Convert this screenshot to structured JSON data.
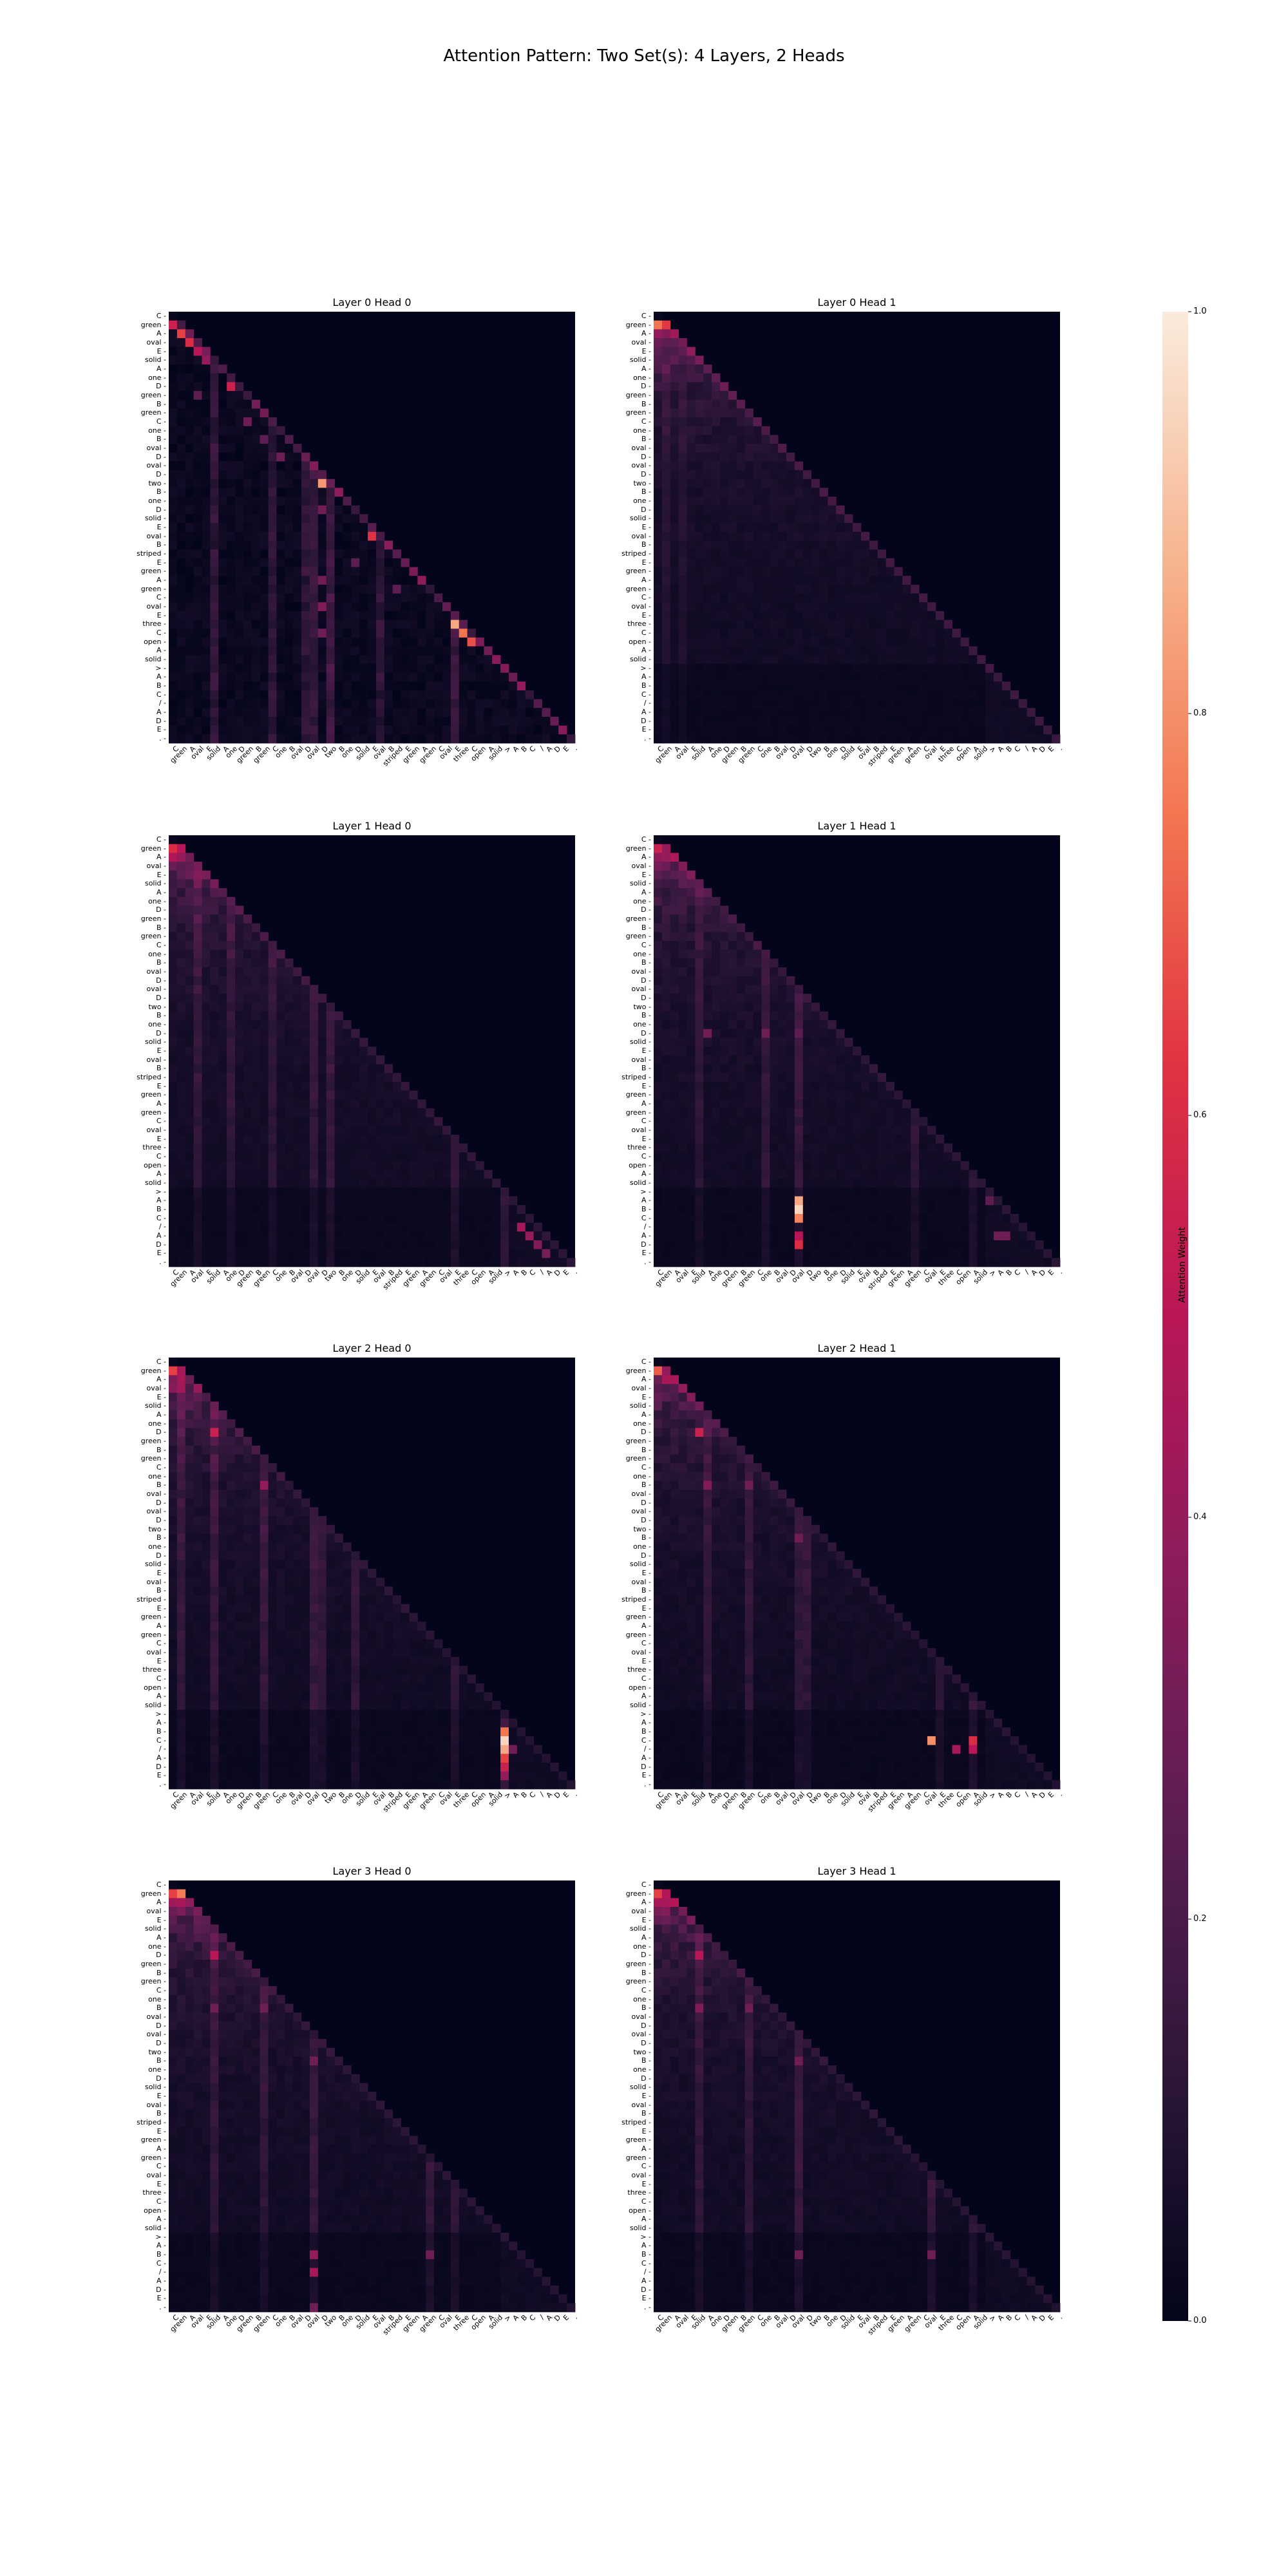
{
  "title": "Attention Pattern: Two Set(s): 4 Layers, 2 Heads",
  "chart_data": {
    "type": "heatmap",
    "tokens": [
      "C",
      "green",
      "A",
      "oval",
      "E",
      "solid",
      "A",
      "one",
      "D",
      "green",
      "B",
      "green",
      "C",
      "one",
      "B",
      "oval",
      "D",
      "oval",
      "D",
      "two",
      "B",
      "one",
      "D",
      "solid",
      "E",
      "oval",
      "B",
      "striped",
      "E",
      "green",
      "A",
      "green",
      "C",
      "oval",
      "E",
      "three",
      "C",
      "open",
      "A",
      "solid",
      ">",
      "A",
      "B",
      "C",
      "/",
      "A",
      "D",
      "E",
      "."
    ],
    "colorbar": {
      "label": "Attention Weight",
      "ticks": [
        0.0,
        0.2,
        0.4,
        0.6,
        0.8,
        1.0
      ],
      "tick_labels": [
        "0.0",
        "0.2",
        "0.4",
        "0.6",
        "0.8",
        "1.0"
      ],
      "range": [
        0,
        1
      ]
    },
    "colormap": [
      "#03051a",
      "#2e1739",
      "#5c1e51",
      "#8c1c5b",
      "#b91657",
      "#e13342",
      "#f37651",
      "#f6b48f",
      "#faebdd"
    ],
    "mask": "causal lower-triangular (upper triangle = 0)",
    "panels": [
      {
        "title": "Layer 0 Head 0",
        "pattern": "sparse",
        "diag": 0.35,
        "base": 0.04,
        "peaks": [
          [
            1,
            0,
            0.55
          ],
          [
            2,
            1,
            0.65
          ],
          [
            3,
            2,
            0.6
          ],
          [
            4,
            3,
            0.5
          ],
          [
            5,
            4,
            0.4
          ],
          [
            8,
            7,
            0.55
          ],
          [
            19,
            18,
            0.82
          ],
          [
            25,
            24,
            0.62
          ],
          [
            35,
            34,
            0.85
          ],
          [
            36,
            35,
            0.75
          ],
          [
            37,
            36,
            0.68
          ],
          [
            16,
            13,
            0.3
          ],
          [
            12,
            9,
            0.3
          ],
          [
            22,
            18,
            0.3
          ],
          [
            30,
            18,
            0.3
          ],
          [
            33,
            18,
            0.35
          ],
          [
            36,
            18,
            0.3
          ],
          [
            9,
            3,
            0.25
          ],
          [
            14,
            11,
            0.25
          ],
          [
            28,
            22,
            0.25
          ],
          [
            31,
            27,
            0.25
          ]
        ],
        "cols": [
          [
            5,
            0.15
          ],
          [
            12,
            0.12
          ],
          [
            16,
            0.14
          ],
          [
            17,
            0.16
          ],
          [
            19,
            0.18
          ],
          [
            25,
            0.12
          ],
          [
            34,
            0.17
          ]
        ]
      },
      {
        "title": "Layer 0 Head 1",
        "pattern": "diffuse",
        "diag": 0.12,
        "base": 0.06,
        "peaks": [
          [
            1,
            0,
            0.75
          ],
          [
            2,
            1,
            0.35
          ],
          [
            3,
            1,
            0.25
          ]
        ],
        "cols": [
          [
            1,
            0.06
          ],
          [
            3,
            0.05
          ]
        ]
      },
      {
        "title": "Layer 1 Head 0",
        "pattern": "diffuse",
        "diag": 0.08,
        "base": 0.07,
        "peaks": [
          [
            1,
            0,
            0.6
          ],
          [
            2,
            1,
            0.4
          ],
          [
            44,
            42,
            0.45
          ],
          [
            45,
            43,
            0.4
          ],
          [
            46,
            44,
            0.35
          ],
          [
            47,
            45,
            0.32
          ]
        ],
        "cols": [
          [
            3,
            0.1
          ],
          [
            7,
            0.09
          ],
          [
            12,
            0.08
          ],
          [
            17,
            0.1
          ],
          [
            19,
            0.12
          ],
          [
            34,
            0.12
          ],
          [
            40,
            0.1
          ]
        ]
      },
      {
        "title": "Layer 1 Head 1",
        "pattern": "diffuse",
        "diag": 0.07,
        "base": 0.07,
        "peaks": [
          [
            1,
            0,
            0.55
          ],
          [
            2,
            1,
            0.4
          ],
          [
            41,
            17,
            0.85
          ],
          [
            42,
            17,
            0.95
          ],
          [
            43,
            17,
            0.78
          ],
          [
            45,
            17,
            0.5
          ],
          [
            46,
            17,
            0.6
          ],
          [
            22,
            6,
            0.3
          ],
          [
            22,
            13,
            0.3
          ],
          [
            22,
            17,
            0.25
          ],
          [
            41,
            40,
            0.25
          ],
          [
            45,
            41,
            0.3
          ],
          [
            45,
            42,
            0.3
          ]
        ],
        "cols": [
          [
            5,
            0.08
          ],
          [
            13,
            0.1
          ],
          [
            17,
            0.12
          ],
          [
            31,
            0.1
          ],
          [
            38,
            0.1
          ]
        ]
      },
      {
        "title": "Layer 2 Head 0",
        "pattern": "diffuse",
        "diag": 0.06,
        "base": 0.06,
        "peaks": [
          [
            1,
            0,
            0.65
          ],
          [
            2,
            1,
            0.45
          ],
          [
            8,
            5,
            0.55
          ],
          [
            14,
            11,
            0.4
          ],
          [
            42,
            40,
            0.75
          ],
          [
            43,
            40,
            0.95
          ],
          [
            44,
            40,
            0.85
          ],
          [
            45,
            40,
            0.65
          ],
          [
            46,
            40,
            0.55
          ],
          [
            47,
            40,
            0.4
          ],
          [
            44,
            41,
            0.3
          ]
        ],
        "cols": [
          [
            1,
            0.1
          ],
          [
            5,
            0.12
          ],
          [
            11,
            0.12
          ],
          [
            17,
            0.12
          ],
          [
            18,
            0.1
          ],
          [
            22,
            0.1
          ],
          [
            34,
            0.12
          ],
          [
            40,
            0.14
          ]
        ]
      },
      {
        "title": "Layer 2 Head 1",
        "pattern": "diffuse",
        "diag": 0.06,
        "base": 0.06,
        "peaks": [
          [
            1,
            0,
            0.7
          ],
          [
            2,
            1,
            0.45
          ],
          [
            8,
            5,
            0.55
          ],
          [
            14,
            6,
            0.35
          ],
          [
            14,
            11,
            0.3
          ],
          [
            20,
            17,
            0.3
          ],
          [
            43,
            33,
            0.8
          ],
          [
            44,
            36,
            0.45
          ],
          [
            43,
            38,
            0.6
          ],
          [
            44,
            38,
            0.5
          ]
        ],
        "cols": [
          [
            6,
            0.1
          ],
          [
            11,
            0.1
          ],
          [
            17,
            0.1
          ],
          [
            18,
            0.1
          ],
          [
            34,
            0.1
          ],
          [
            38,
            0.12
          ]
        ]
      },
      {
        "title": "Layer 3 Head 0",
        "pattern": "diffuse",
        "diag": 0.06,
        "base": 0.06,
        "peaks": [
          [
            1,
            0,
            0.65
          ],
          [
            2,
            1,
            0.45
          ],
          [
            8,
            5,
            0.5
          ],
          [
            14,
            5,
            0.3
          ],
          [
            14,
            11,
            0.3
          ],
          [
            20,
            17,
            0.3
          ],
          [
            42,
            17,
            0.4
          ],
          [
            44,
            17,
            0.45
          ],
          [
            48,
            17,
            0.3
          ],
          [
            42,
            31,
            0.3
          ]
        ],
        "cols": [
          [
            5,
            0.1
          ],
          [
            11,
            0.1
          ],
          [
            17,
            0.12
          ],
          [
            31,
            0.12
          ],
          [
            34,
            0.1
          ]
        ]
      },
      {
        "title": "Layer 3 Head 1",
        "pattern": "diffuse",
        "diag": 0.06,
        "base": 0.06,
        "peaks": [
          [
            1,
            0,
            0.65
          ],
          [
            2,
            1,
            0.45
          ],
          [
            8,
            5,
            0.5
          ],
          [
            14,
            5,
            0.35
          ],
          [
            14,
            11,
            0.3
          ],
          [
            20,
            17,
            0.3
          ],
          [
            42,
            17,
            0.3
          ],
          [
            42,
            33,
            0.3
          ]
        ],
        "cols": [
          [
            5,
            0.1
          ],
          [
            11,
            0.1
          ],
          [
            17,
            0.12
          ],
          [
            33,
            0.12
          ],
          [
            38,
            0.1
          ]
        ]
      }
    ]
  }
}
